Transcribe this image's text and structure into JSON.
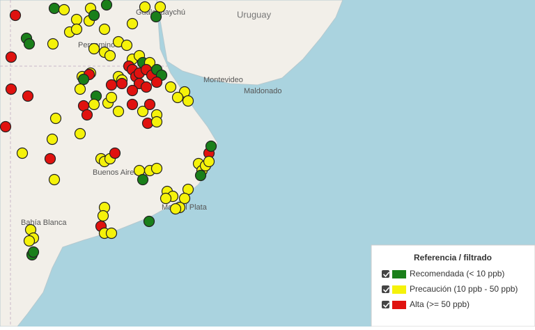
{
  "map": {
    "places": [
      "Uruguay",
      "Montevideo",
      "Maldonado",
      "Gualeguaychú",
      "Pergamino",
      "Buenos Aires",
      "Mar del Plata",
      "Bahía Blanca"
    ],
    "legend": {
      "title": "Referencia / filtrado",
      "items": [
        "Recomendada (< 10 ppb)",
        "Precaución (10 ppb - 50 ppb)",
        "Alta (>= 50 ppb)"
      ]
    }
  }
}
